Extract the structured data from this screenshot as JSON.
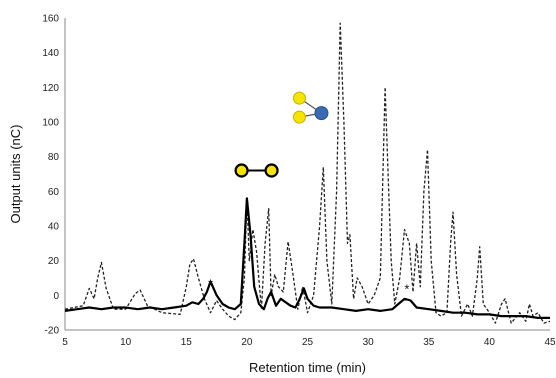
{
  "chart_data": {
    "type": "line",
    "xlabel": "Retention time (min)",
    "ylabel": "Output units (nC)",
    "xlim": [
      5,
      45
    ],
    "ylim": [
      -20,
      160
    ],
    "xticks": [
      5,
      10,
      15,
      20,
      25,
      30,
      35,
      40,
      45
    ],
    "yticks": [
      -20,
      0,
      20,
      40,
      60,
      80,
      100,
      120,
      140,
      160
    ],
    "grid": false,
    "annotations": [
      {
        "text": "*",
        "x": 17.0,
        "y": 4
      },
      {
        "text": "*",
        "x": 33.2,
        "y": 1
      }
    ],
    "series": [
      {
        "style": "dashed",
        "color": "#222222",
        "x": [
          5,
          6.5,
          7.0,
          7.4,
          7.7,
          8.0,
          8.4,
          9.0,
          10.0,
          10.8,
          11.2,
          11.8,
          13.0,
          14.5,
          15.0,
          15.3,
          15.6,
          16.0,
          16.5,
          17.0,
          17.5,
          18.0,
          18.5,
          19.0,
          19.5,
          19.8,
          20.0,
          20.2,
          20.5,
          20.8,
          21.2,
          21.5,
          21.8,
          22.0,
          22.3,
          22.6,
          23.0,
          23.4,
          23.8,
          24.2,
          24.6,
          25.0,
          25.5,
          26.0,
          26.3,
          26.6,
          27.0,
          27.4,
          27.7,
          28.0,
          28.3,
          28.5,
          28.8,
          29.1,
          29.5,
          30.0,
          30.5,
          31.0,
          31.4,
          31.7,
          31.9,
          32.2,
          32.6,
          33.0,
          33.4,
          33.7,
          34.0,
          34.3,
          34.6,
          34.9,
          35.2,
          35.6,
          36.0,
          36.5,
          36.8,
          37.0,
          37.3,
          37.7,
          38.2,
          38.6,
          39.0,
          39.2,
          39.5,
          40.0,
          40.5,
          41.0,
          41.3,
          41.8,
          42.5,
          43.0,
          43.3,
          43.6,
          44.0,
          44.5,
          45.0
        ],
        "y": [
          -8,
          -6,
          4,
          -2,
          10,
          19,
          4,
          -8,
          -8,
          1,
          3,
          -6,
          -10,
          -11,
          5,
          18,
          21,
          10,
          -2,
          -10,
          -3,
          -8,
          -12,
          -14,
          -10,
          10,
          56,
          20,
          38,
          25,
          -8,
          30,
          50,
          0,
          12,
          5,
          2,
          31,
          12,
          -8,
          5,
          -10,
          0,
          40,
          74,
          20,
          -5,
          60,
          157,
          100,
          30,
          35,
          -2,
          10,
          5,
          -5,
          0,
          10,
          120,
          60,
          20,
          -5,
          10,
          38,
          30,
          2,
          30,
          5,
          60,
          84,
          20,
          -10,
          -12,
          -10,
          30,
          48,
          12,
          -12,
          -5,
          -12,
          10,
          28,
          -5,
          -10,
          -16,
          -5,
          -2,
          -16,
          -10,
          -15,
          -5,
          -12,
          -10,
          -16,
          -15
        ]
      },
      {
        "style": "solid",
        "color": "#000000",
        "x": [
          5,
          6.0,
          7.0,
          8.0,
          9.0,
          10.0,
          11.0,
          12.0,
          13.0,
          14.0,
          15.0,
          15.5,
          16.0,
          16.4,
          16.7,
          17.0,
          17.5,
          18.0,
          18.5,
          19.0,
          19.5,
          19.8,
          20.0,
          20.3,
          20.6,
          21.0,
          21.4,
          21.7,
          22.0,
          22.4,
          22.8,
          23.2,
          23.6,
          24.0,
          24.3,
          24.7,
          25.0,
          25.5,
          26.0,
          27.0,
          28.0,
          29.0,
          30.0,
          31.0,
          32.0,
          32.5,
          33.0,
          33.5,
          34.0,
          35.0,
          36.0,
          37.0,
          38.0,
          39.0,
          40.0,
          41.0,
          42.0,
          43.0,
          44.0,
          45.0
        ],
        "y": [
          -9,
          -8,
          -7,
          -8,
          -7,
          -7,
          -8,
          -7,
          -8,
          -7,
          -6,
          -4,
          -5,
          -2,
          2,
          8,
          0,
          -5,
          -7,
          -8,
          -5,
          30,
          56,
          35,
          5,
          -5,
          -8,
          -2,
          2,
          -6,
          -2,
          -4,
          -6,
          -7,
          -3,
          4,
          -2,
          -6,
          -7,
          -7,
          -8,
          -9,
          -8,
          -9,
          -8,
          -5,
          -2,
          -3,
          -7,
          -8,
          -9,
          -10,
          -10,
          -11,
          -11,
          -12,
          -12,
          -12,
          -13,
          -13
        ]
      }
    ],
    "glycan_symbols": [
      {
        "name": "disaccharide-glc-glc",
        "residues": [
          "yellow-circle",
          "yellow-circle"
        ],
        "color_yellow": "#f5e400",
        "anchor_x": 20.8,
        "anchor_y": 72
      },
      {
        "name": "trisaccharide-branched",
        "residues": [
          "yellow-circle",
          "yellow-circle",
          "blue-circle"
        ],
        "color_yellow": "#f5e400",
        "color_blue": "#3a6ab0",
        "anchor_x": 24.5,
        "anchor_y": 108
      }
    ]
  }
}
